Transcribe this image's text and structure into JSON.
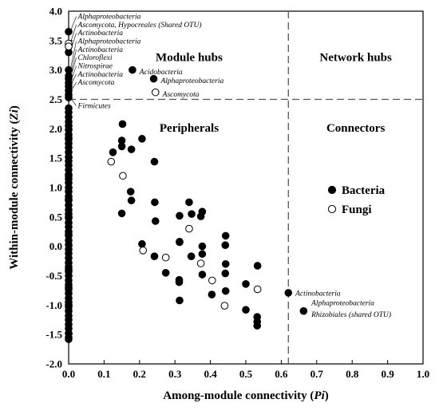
{
  "chart_data": {
    "type": "scatter",
    "title": "",
    "xlabel": "Among-module connectivity (Pi)",
    "xlabel_parts": [
      "Among-module connectivity (",
      "Pi",
      ")"
    ],
    "ylabel": "Within-module connectivity (Zi)",
    "ylabel_parts": [
      "Within-module connectivity (",
      "Zi",
      ")"
    ],
    "xlim": [
      0.0,
      1.0
    ],
    "ylim": [
      -2.0,
      4.0
    ],
    "x_ticks": [
      "0.0",
      "0.1",
      "0.2",
      "0.3",
      "0.4",
      "0.5",
      "0.6",
      "0.7",
      "0.8",
      "0.9",
      "1.0"
    ],
    "y_ticks": [
      "-2.0",
      "-1.5",
      "-1.0",
      "-0.5",
      "0.0",
      "0.5",
      "1.0",
      "1.5",
      "2.0",
      "2.5",
      "3.0",
      "3.5",
      "4.0"
    ],
    "thresholds": {
      "x": 0.62,
      "y": 2.5
    },
    "grid": false,
    "legend_position": "center-right",
    "regions": [
      {
        "label": "Module hubs",
        "x": 0.34,
        "y": 3.15
      },
      {
        "label": "Network hubs",
        "x": 0.81,
        "y": 3.15
      },
      {
        "label": "Peripherals",
        "x": 0.34,
        "y": 1.95
      },
      {
        "label": "Connectors",
        "x": 0.81,
        "y": 1.95
      }
    ],
    "series": [
      {
        "name": "Bacteria",
        "marker": "filled-circle",
        "color": "#000000",
        "x": [
          0,
          0,
          0,
          0,
          0,
          0,
          0,
          0,
          0,
          0,
          0,
          0,
          0,
          0,
          0,
          0,
          0,
          0,
          0,
          0,
          0,
          0,
          0,
          0,
          0,
          0,
          0,
          0,
          0,
          0,
          0,
          0,
          0,
          0,
          0,
          0,
          0,
          0,
          0,
          0,
          0,
          0,
          0,
          0,
          0,
          0,
          0,
          0,
          0,
          0,
          0,
          0,
          0,
          0,
          0,
          0,
          0,
          0,
          0,
          0,
          0,
          0,
          0,
          0,
          0,
          0,
          0,
          0,
          0,
          0,
          0,
          0,
          0.18,
          0.24,
          0.152,
          0.207,
          0.125,
          0.15,
          0.177,
          0.15,
          0.242,
          0.175,
          0.243,
          0.15,
          0.177,
          0.245,
          0.313,
          0.34,
          0.377,
          0.373,
          0.347,
          0.313,
          0.443,
          0.377,
          0.442,
          0.313,
          0.207,
          0.242,
          0.312,
          0.274,
          0.346,
          0.377,
          0.443,
          0.533,
          0.312,
          0.377,
          0.442,
          0.404,
          0.5,
          0.313,
          0.443,
          0.5,
          0.532,
          0.532,
          0.532,
          0.62,
          0.663
        ],
        "y": [
          3.65,
          3.3,
          3.0,
          2.9,
          2.85,
          2.78,
          2.72,
          2.65,
          2.58,
          2.53,
          2.35,
          2.28,
          2.2,
          2.12,
          2.05,
          1.98,
          1.9,
          1.82,
          1.75,
          1.68,
          1.6,
          1.52,
          1.45,
          1.38,
          1.3,
          1.22,
          1.15,
          1.08,
          1.0,
          0.93,
          0.85,
          0.78,
          0.7,
          0.62,
          0.55,
          0.48,
          0.4,
          0.33,
          0.25,
          0.18,
          0.1,
          0.03,
          -0.05,
          -0.12,
          -0.2,
          -0.28,
          -0.35,
          -0.43,
          -0.5,
          -0.58,
          -0.65,
          -0.73,
          -0.8,
          -0.88,
          -0.95,
          -1.03,
          -1.1,
          -1.18,
          -1.25,
          -1.33,
          -1.4,
          -1.48,
          -1.55,
          -1.58,
          0.8,
          0.2,
          -0.4,
          -1.0,
          1.2,
          0.5,
          -0.7,
          1.85,
          3.0,
          2.85,
          2.08,
          1.83,
          1.6,
          1.8,
          1.65,
          1.7,
          1.44,
          0.93,
          0.75,
          0.56,
          0.78,
          0.43,
          0.52,
          0.75,
          0.59,
          0.51,
          0.55,
          0.08,
          0.18,
          0.0,
          0.02,
          0.07,
          0.04,
          -0.17,
          -0.57,
          -0.45,
          -0.17,
          -0.13,
          -0.3,
          -0.33,
          -0.61,
          -0.48,
          -0.46,
          -0.82,
          -0.64,
          -0.92,
          -0.76,
          -1.08,
          -1.2,
          -1.28,
          -1.35,
          -0.79,
          -1.1
        ]
      },
      {
        "name": "Fungi",
        "marker": "open-circle",
        "color": "#000000",
        "x": [
          0,
          0,
          0.245,
          0.12,
          0.153,
          0.34,
          0.21,
          0.274,
          0.373,
          0.405,
          0.533,
          0.44
        ],
        "y": [
          3.45,
          3.4,
          2.62,
          1.44,
          1.2,
          0.3,
          -0.07,
          -0.19,
          -0.29,
          -0.58,
          -0.73,
          -1.01
        ]
      }
    ],
    "annotations": [
      {
        "text": "Alphaproteobacteria",
        "x": 0.0,
        "y": 3.65,
        "lx": 0.026,
        "ly": 3.87
      },
      {
        "text": "Ascomycota, Hypocreales (Shared OTU)",
        "x": 0.0,
        "y": 3.45,
        "lx": 0.026,
        "ly": 3.73
      },
      {
        "text": "Actinobacteria",
        "x": 0.0,
        "y": 3.3,
        "lx": 0.026,
        "ly": 3.59
      },
      {
        "text": "Alphaproteobacteria",
        "x": 0.0,
        "y": 3.0,
        "lx": 0.026,
        "ly": 3.45
      },
      {
        "text": "Actinobacteria",
        "x": 0.0,
        "y": 2.9,
        "lx": 0.026,
        "ly": 3.31
      },
      {
        "text": "Chloroflexi",
        "x": 0.0,
        "y": 2.85,
        "lx": 0.026,
        "ly": 3.17
      },
      {
        "text": "Nitrospirae",
        "x": 0.0,
        "y": 2.78,
        "lx": 0.026,
        "ly": 3.03
      },
      {
        "text": "Actinobacteria",
        "x": 0.0,
        "y": 2.72,
        "lx": 0.026,
        "ly": 2.89
      },
      {
        "text": "Ascomycota",
        "x": 0.0,
        "y": 2.62,
        "lx": 0.026,
        "ly": 2.75
      },
      {
        "text": "Firmicutes",
        "x": 0.0,
        "y": 2.53,
        "lx": 0.026,
        "ly": 2.35
      },
      {
        "text": "Acidobacteria",
        "x": 0.18,
        "y": 3.0,
        "lx": 0.2,
        "ly": 2.93
      },
      {
        "text": "Alphaproteobacteria",
        "x": 0.24,
        "y": 2.85,
        "lx": 0.26,
        "ly": 2.78
      },
      {
        "text": "Ascomycota",
        "x": 0.245,
        "y": 2.62,
        "lx": 0.265,
        "ly": 2.55
      },
      {
        "text": "Actinobacteria",
        "x": 0.62,
        "y": -0.79,
        "lx": 0.64,
        "ly": -0.84
      },
      {
        "text": "Alphaproteobacteria",
        "x": 0.663,
        "y": -1.1,
        "lx": 0.685,
        "ly": -1.0
      },
      {
        "text": "Rhizobiales (shared OTU)",
        "x": 0.663,
        "y": -1.1,
        "lx": 0.685,
        "ly": -1.2
      }
    ]
  }
}
